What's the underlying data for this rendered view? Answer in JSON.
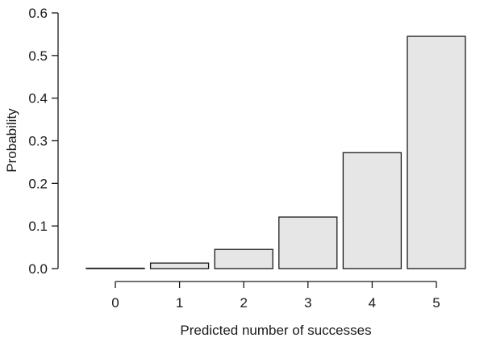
{
  "chart_data": {
    "type": "bar",
    "xlabel": "Predicted number of successes",
    "ylabel": "Probability",
    "categories": [
      "0",
      "1",
      "2",
      "3",
      "4",
      "5"
    ],
    "values": [
      0.0003,
      0.013,
      0.045,
      0.121,
      0.272,
      0.545
    ],
    "ylim": [
      0,
      0.6
    ],
    "yticks": [
      "0.0",
      "0.1",
      "0.2",
      "0.3",
      "0.4",
      "0.5",
      "0.6"
    ],
    "grid": false,
    "bar_fill": "#e6e6e6",
    "bar_stroke": "#1a1a1a"
  }
}
